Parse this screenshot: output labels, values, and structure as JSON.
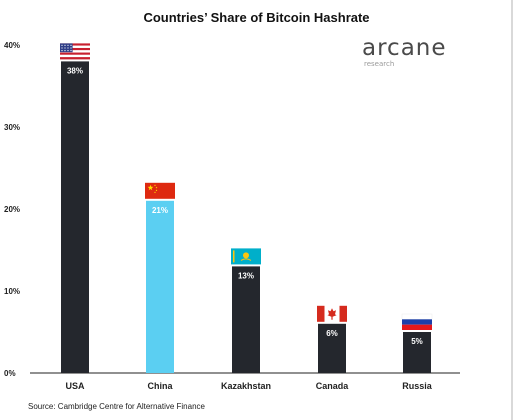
{
  "title": "Countries’ Share of Bitcoin Hashrate",
  "brand": {
    "name": "arcane",
    "sub": "research"
  },
  "source": "Source: Cambridge Centre for Alternative Finance",
  "chart_data": {
    "type": "bar",
    "title": "Countries’ Share of Bitcoin Hashrate",
    "xlabel": "",
    "ylabel": "",
    "ylim": [
      0,
      40
    ],
    "y_ticks": [
      "0%",
      "10%",
      "20%",
      "30%",
      "40%"
    ],
    "y_tick_values": [
      0,
      10,
      20,
      30,
      40
    ],
    "grid": false,
    "categories": [
      "USA",
      "China",
      "Kazakhstan",
      "Canada",
      "Russia"
    ],
    "values": [
      38,
      21,
      13,
      6,
      5
    ],
    "value_labels": [
      "38%",
      "21%",
      "13%",
      "6%",
      "5%"
    ],
    "bar_colors": [
      "#24272d",
      "#5bcff2",
      "#24272d",
      "#24272d",
      "#24272d"
    ],
    "flags": [
      "usa-flag",
      "china-flag",
      "kazakhstan-flag",
      "canada-flag",
      "russia-flag"
    ]
  },
  "colors": {
    "dark_bar": "#24272d",
    "highlight_bar": "#5bcff2",
    "axis": "#222222"
  }
}
